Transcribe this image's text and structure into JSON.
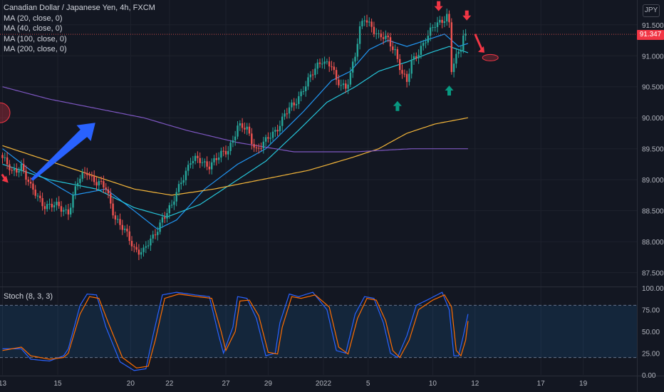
{
  "legend": {
    "title": "Canadian Dollar / Japanese Yen, 4h, FXCM",
    "ma20": "MA (20, close, 0)",
    "ma40": "MA (40, close, 0)",
    "ma100": "MA (100, close, 0)",
    "ma200": "MA (200, close, 0)"
  },
  "currency_badge": "JPY",
  "last_price": "91.347",
  "oscillator_label": "Stoch (8, 3, 3)",
  "colors": {
    "background": "#131722",
    "up": "#26a69a",
    "down": "#ef5350",
    "ma20": "#2196f3",
    "ma40": "#26c6da",
    "ma100": "#f4b63a",
    "ma200": "#7e57c2",
    "stoch_k": "#2962ff",
    "stoch_d": "#ff6d00",
    "arrow_blue": "#2962ff",
    "arrow_red": "#f23645",
    "arrow_green": "#089981"
  },
  "chart_data": [
    {
      "type": "line",
      "title": "Canadian Dollar / Japanese Yen, 4h, FXCM",
      "y_ticks": [
        "87.500",
        "88.000",
        "88.500",
        "89.000",
        "89.500",
        "90.000",
        "90.500",
        "91.000",
        "91.500"
      ],
      "ylim": [
        87.3,
        91.9
      ],
      "x_ticks": [
        "13",
        "15",
        "20",
        "22",
        "27",
        "29",
        "2022",
        "5",
        "10",
        "12",
        "17",
        "19"
      ],
      "x_tick_index": [
        0,
        23.5,
        54.5,
        71,
        95,
        113,
        136.5,
        155.5,
        183,
        201,
        229,
        247
      ],
      "n_bars": 198,
      "close_anchors": [
        [
          0,
          89.35
        ],
        [
          4,
          89.1
        ],
        [
          8,
          89.25
        ],
        [
          12,
          88.85
        ],
        [
          18,
          88.6
        ],
        [
          24,
          88.55
        ],
        [
          28,
          88.5
        ],
        [
          32,
          88.95
        ],
        [
          36,
          89.15
        ],
        [
          40,
          88.95
        ],
        [
          44,
          88.85
        ],
        [
          48,
          88.4
        ],
        [
          52,
          88.15
        ],
        [
          56,
          87.9
        ],
        [
          60,
          87.85
        ],
        [
          64,
          88.05
        ],
        [
          68,
          88.4
        ],
        [
          72,
          88.55
        ],
        [
          76,
          89.0
        ],
        [
          80,
          89.3
        ],
        [
          84,
          89.3
        ],
        [
          88,
          89.25
        ],
        [
          92,
          89.35
        ],
        [
          96,
          89.5
        ],
        [
          100,
          89.85
        ],
        [
          104,
          89.8
        ],
        [
          108,
          89.5
        ],
        [
          112,
          89.6
        ],
        [
          116,
          89.8
        ],
        [
          120,
          90.05
        ],
        [
          124,
          90.2
        ],
        [
          128,
          90.5
        ],
        [
          132,
          90.7
        ],
        [
          136,
          90.95
        ],
        [
          140,
          90.85
        ],
        [
          142,
          90.55
        ],
        [
          146,
          90.5
        ],
        [
          150,
          91.0
        ],
        [
          152,
          91.4
        ],
        [
          154,
          91.6
        ],
        [
          157,
          91.5
        ],
        [
          160,
          91.3
        ],
        [
          164,
          91.25
        ],
        [
          167,
          91.1
        ],
        [
          170,
          90.7
        ],
        [
          172,
          90.55
        ],
        [
          174,
          90.9
        ],
        [
          178,
          91.15
        ],
        [
          181,
          91.3
        ],
        [
          184,
          91.5
        ],
        [
          187,
          91.6
        ],
        [
          189,
          91.65
        ],
        [
          190,
          91.5
        ],
        [
          191,
          90.75
        ],
        [
          193,
          90.95
        ],
        [
          195,
          91.15
        ],
        [
          196,
          91.35
        ],
        [
          197,
          91.35
        ]
      ],
      "series": [
        {
          "name": "MA (20, close, 0)",
          "points": [
            [
              0,
              89.5
            ],
            [
              12,
              89.15
            ],
            [
              30,
              88.75
            ],
            [
              44,
              88.85
            ],
            [
              56,
              88.5
            ],
            [
              66,
              88.2
            ],
            [
              74,
              88.35
            ],
            [
              86,
              88.85
            ],
            [
              100,
              89.25
            ],
            [
              112,
              89.5
            ],
            [
              128,
              90.1
            ],
            [
              140,
              90.6
            ],
            [
              148,
              90.75
            ],
            [
              156,
              91.1
            ],
            [
              164,
              91.25
            ],
            [
              172,
              91.15
            ],
            [
              180,
              91.25
            ],
            [
              188,
              91.35
            ],
            [
              194,
              91.15
            ],
            [
              198,
              91.2
            ]
          ]
        },
        {
          "name": "MA (40, close, 0)",
          "points": [
            [
              0,
              89.25
            ],
            [
              20,
              89.0
            ],
            [
              40,
              88.85
            ],
            [
              56,
              88.55
            ],
            [
              70,
              88.4
            ],
            [
              84,
              88.6
            ],
            [
              98,
              88.95
            ],
            [
              112,
              89.3
            ],
            [
              126,
              89.8
            ],
            [
              138,
              90.25
            ],
            [
              150,
              90.5
            ],
            [
              160,
              90.75
            ],
            [
              172,
              90.9
            ],
            [
              182,
              91.05
            ],
            [
              190,
              91.15
            ],
            [
              198,
              91.05
            ]
          ]
        },
        {
          "name": "MA (100, close, 0)",
          "points": [
            [
              0,
              89.55
            ],
            [
              20,
              89.3
            ],
            [
              40,
              89.05
            ],
            [
              56,
              88.85
            ],
            [
              72,
              88.75
            ],
            [
              90,
              88.85
            ],
            [
              110,
              89.0
            ],
            [
              130,
              89.15
            ],
            [
              148,
              89.35
            ],
            [
              160,
              89.5
            ],
            [
              172,
              89.75
            ],
            [
              184,
              89.9
            ],
            [
              198,
              90.0
            ]
          ]
        },
        {
          "name": "MA (200, close, 0)",
          "points": [
            [
              0,
              90.5
            ],
            [
              20,
              90.3
            ],
            [
              40,
              90.15
            ],
            [
              60,
              90.0
            ],
            [
              78,
              89.8
            ],
            [
              100,
              89.6
            ],
            [
              124,
              89.45
            ],
            [
              150,
              89.45
            ],
            [
              174,
              89.5
            ],
            [
              198,
              89.5
            ]
          ]
        }
      ]
    },
    {
      "type": "line",
      "title": "Stoch (8, 3, 3)",
      "y_ticks": [
        "0.00",
        "25.00",
        "50.00",
        "75.00",
        "100.00"
      ],
      "ylim": [
        0,
        100
      ],
      "bands": [
        20,
        80
      ],
      "series": [
        {
          "name": "%K",
          "points": [
            [
              0,
              30
            ],
            [
              8,
              30
            ],
            [
              12,
              18
            ],
            [
              20,
              16
            ],
            [
              26,
              22
            ],
            [
              28,
              30
            ],
            [
              33,
              80
            ],
            [
              36,
              93
            ],
            [
              40,
              92
            ],
            [
              44,
              55
            ],
            [
              50,
              15
            ],
            [
              56,
              5
            ],
            [
              61,
              7
            ],
            [
              64,
              45
            ],
            [
              68,
              92
            ],
            [
              74,
              95
            ],
            [
              82,
              92
            ],
            [
              88,
              90
            ],
            [
              92,
              45
            ],
            [
              94,
              25
            ],
            [
              98,
              55
            ],
            [
              100,
              90
            ],
            [
              104,
              88
            ],
            [
              108,
              65
            ],
            [
              112,
              22
            ],
            [
              116,
              25
            ],
            [
              118,
              60
            ],
            [
              122,
              93
            ],
            [
              126,
              90
            ],
            [
              132,
              95
            ],
            [
              138,
              75
            ],
            [
              142,
              28
            ],
            [
              146,
              25
            ],
            [
              150,
              70
            ],
            [
              154,
              90
            ],
            [
              158,
              88
            ],
            [
              162,
              60
            ],
            [
              165,
              25
            ],
            [
              168,
              20
            ],
            [
              172,
              45
            ],
            [
              176,
              80
            ],
            [
              182,
              88
            ],
            [
              187,
              95
            ],
            [
              190,
              75
            ],
            [
              192,
              22
            ],
            [
              194,
              22
            ],
            [
              196,
              45
            ],
            [
              198,
              70
            ]
          ]
        },
        {
          "name": "%D",
          "points": [
            [
              0,
              28
            ],
            [
              8,
              32
            ],
            [
              12,
              22
            ],
            [
              20,
              18
            ],
            [
              26,
              20
            ],
            [
              28,
              25
            ],
            [
              33,
              70
            ],
            [
              37,
              90
            ],
            [
              41,
              88
            ],
            [
              45,
              60
            ],
            [
              51,
              20
            ],
            [
              57,
              8
            ],
            [
              62,
              10
            ],
            [
              65,
              40
            ],
            [
              69,
              88
            ],
            [
              75,
              93
            ],
            [
              83,
              90
            ],
            [
              89,
              88
            ],
            [
              93,
              50
            ],
            [
              95,
              28
            ],
            [
              99,
              50
            ],
            [
              101,
              85
            ],
            [
              105,
              86
            ],
            [
              109,
              68
            ],
            [
              113,
              26
            ],
            [
              117,
              24
            ],
            [
              119,
              55
            ],
            [
              123,
              90
            ],
            [
              127,
              88
            ],
            [
              133,
              92
            ],
            [
              139,
              78
            ],
            [
              143,
              32
            ],
            [
              147,
              24
            ],
            [
              151,
              65
            ],
            [
              155,
              88
            ],
            [
              159,
              86
            ],
            [
              163,
              62
            ],
            [
              166,
              28
            ],
            [
              169,
              20
            ],
            [
              173,
              40
            ],
            [
              177,
              75
            ],
            [
              183,
              86
            ],
            [
              188,
              92
            ],
            [
              191,
              78
            ],
            [
              193,
              28
            ],
            [
              195,
              22
            ],
            [
              197,
              40
            ],
            [
              198,
              62
            ]
          ]
        }
      ]
    }
  ]
}
